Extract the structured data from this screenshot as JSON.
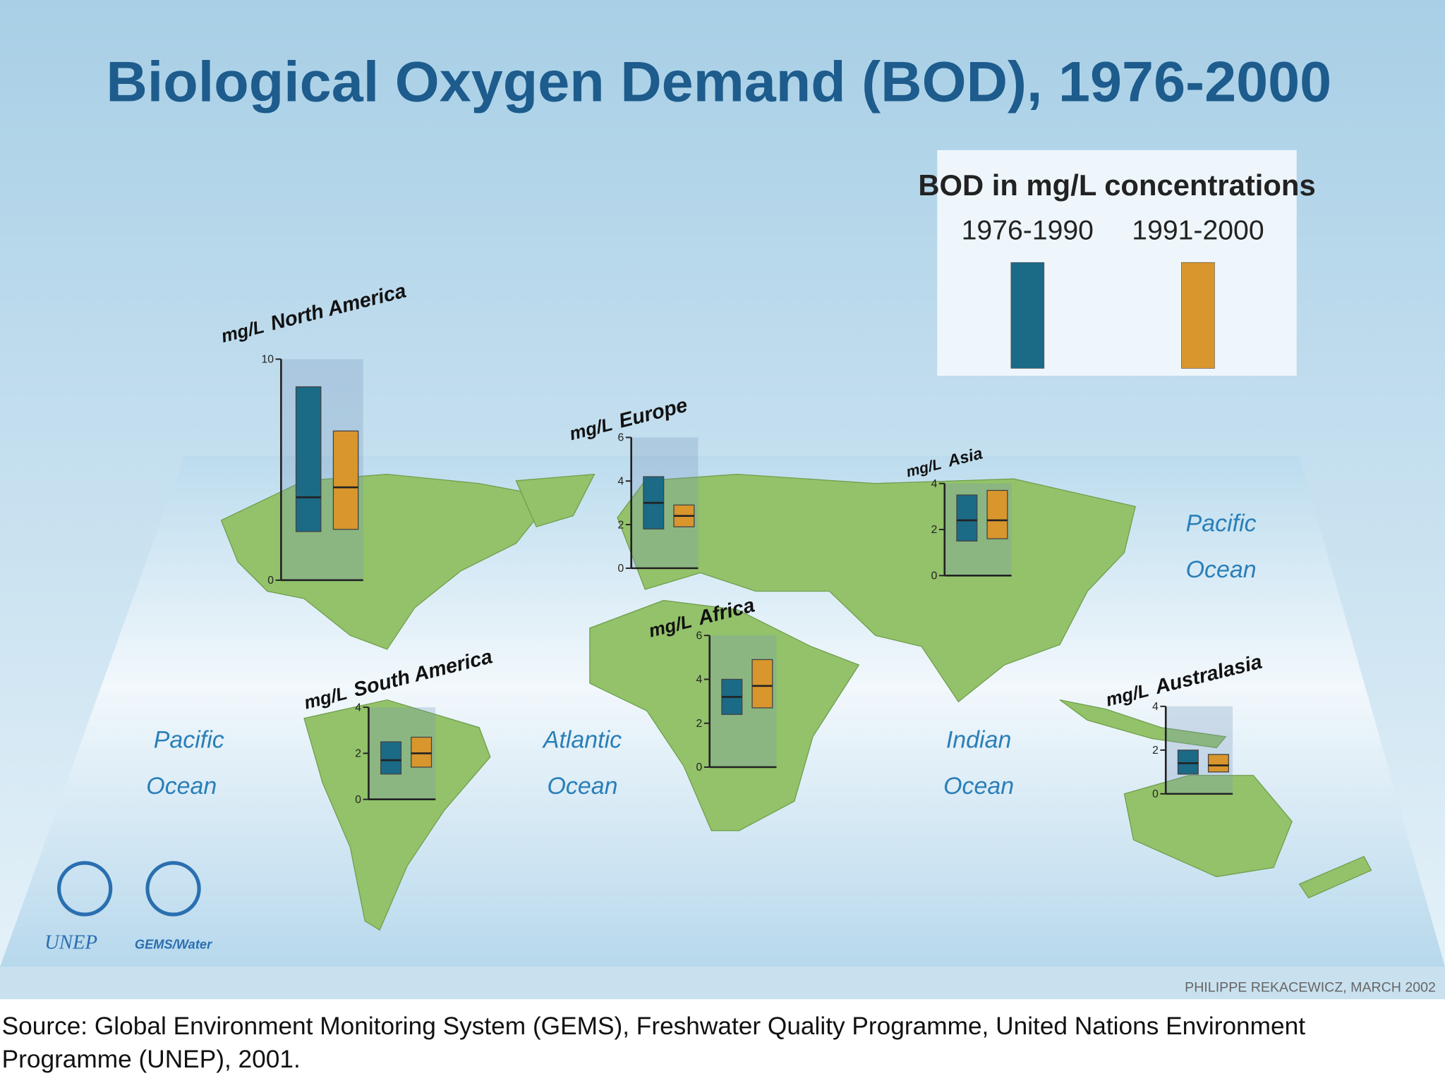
{
  "title": "Biological Oxygen Demand (BOD), 1976-2000",
  "legend": {
    "title": "BOD in mg/L concentrations",
    "series": [
      {
        "name": "1976-1990",
        "color": "#1b6a86"
      },
      {
        "name": "1991-2000",
        "color": "#d9962c"
      }
    ]
  },
  "chart_data": [
    {
      "type": "box",
      "unit": "mg/L",
      "title": "North America",
      "ylim": [
        0,
        10
      ],
      "yticks": [
        0,
        10
      ],
      "series": [
        {
          "low": 2.2,
          "median": 3.75,
          "high": 8.75
        },
        {
          "low": 2.3,
          "median": 4.2,
          "high": 6.75
        }
      ]
    },
    {
      "type": "box",
      "unit": "mg/L",
      "title": "Europe",
      "ylim": [
        0,
        6
      ],
      "yticks": [
        0,
        2,
        4,
        6
      ],
      "series": [
        {
          "low": 1.8,
          "median": 3.0,
          "high": 4.2
        },
        {
          "low": 1.9,
          "median": 2.4,
          "high": 2.9
        }
      ]
    },
    {
      "type": "box",
      "unit": "mg/L",
      "title": "Asia",
      "ylim": [
        0,
        4
      ],
      "yticks": [
        0,
        2,
        4
      ],
      "series": [
        {
          "low": 1.5,
          "median": 2.4,
          "high": 3.5
        },
        {
          "low": 1.6,
          "median": 2.4,
          "high": 3.7
        }
      ]
    },
    {
      "type": "box",
      "unit": "mg/L",
      "title": "South America",
      "ylim": [
        0,
        4
      ],
      "yticks": [
        0,
        2,
        4
      ],
      "series": [
        {
          "low": 1.1,
          "median": 1.7,
          "high": 2.5
        },
        {
          "low": 1.4,
          "median": 2.0,
          "high": 2.7
        }
      ]
    },
    {
      "type": "box",
      "unit": "mg/L",
      "title": "Africa",
      "ylim": [
        0,
        6
      ],
      "yticks": [
        0,
        2,
        4,
        6
      ],
      "series": [
        {
          "low": 2.4,
          "median": 3.2,
          "high": 4.0
        },
        {
          "low": 2.7,
          "median": 3.7,
          "high": 4.9
        }
      ]
    },
    {
      "type": "box",
      "unit": "mg/L",
      "title": "Australasia",
      "ylim": [
        0,
        4
      ],
      "yticks": [
        0,
        2,
        4
      ],
      "series": [
        {
          "low": 0.9,
          "median": 1.4,
          "high": 2.0
        },
        {
          "low": 1.0,
          "median": 1.3,
          "high": 1.8
        }
      ]
    }
  ],
  "oceans": [
    {
      "lines": [
        "Pacific",
        "Ocean"
      ]
    },
    {
      "lines": [
        "Atlantic",
        "Ocean"
      ]
    },
    {
      "lines": [
        "Indian",
        "Ocean"
      ]
    },
    {
      "lines": [
        "Pacific",
        "Ocean"
      ]
    }
  ],
  "logos": [
    "UNEP",
    "GEMS/Water"
  ],
  "credit": "PHILIPPE REKACEWICZ, MARCH 2002",
  "source": [
    "Source: Global Environment Monitoring System (GEMS), Freshwater Quality Programme, United Nations Environment",
    "Programme (UNEP), 2001."
  ]
}
